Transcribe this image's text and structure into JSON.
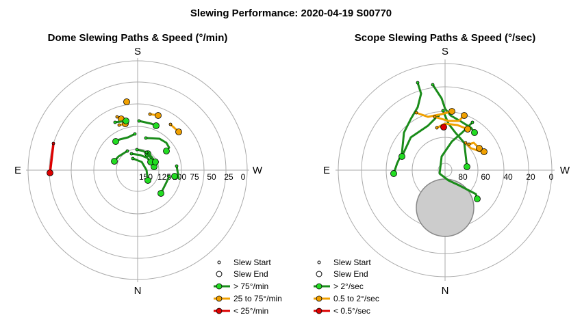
{
  "title": "Slewing Performance: 2020-04-19 S00770",
  "chart_data": [
    {
      "type": "polar-paths",
      "subtitle": "Dome Slewing Paths & Speed (°/min)",
      "cardinals": {
        "top": "S",
        "left": "E",
        "right": "W",
        "bottom": "N"
      },
      "radial_ticks": [
        "150",
        "125",
        "100",
        "75",
        "50",
        "25",
        "0"
      ],
      "legend": [
        {
          "label": "Slew Start",
          "kind": "start"
        },
        {
          "label": "Slew End",
          "kind": "end"
        },
        {
          "label": "> 75°/min",
          "kind": "line",
          "color": "#1a8c1a",
          "marker": "#22dd22"
        },
        {
          "label": "25 to 75°/min",
          "kind": "line",
          "color": "#f0a000",
          "marker": "#f0a000"
        },
        {
          "label": "< 25°/min",
          "kind": "line",
          "color": "#dd0000",
          "marker": "#dd0000"
        }
      ],
      "paths": [
        {
          "speed": "slow",
          "pts": [
            [
              -123,
              -39
            ],
            [
              -128,
              4
            ]
          ]
        },
        {
          "speed": "mid",
          "pts": [
            [
              -17,
              -101
            ],
            [
              -16,
              -100
            ]
          ]
        },
        {
          "speed": "mid",
          "pts": [
            [
              18,
              -82
            ],
            [
              30,
              -80
            ]
          ]
        },
        {
          "speed": "mid",
          "pts": [
            [
              -30,
              -78
            ],
            [
              -24,
              -75
            ]
          ]
        },
        {
          "speed": "mid",
          "pts": [
            [
              -27,
              -66
            ],
            [
              -18,
              -68
            ]
          ]
        },
        {
          "speed": "mid",
          "pts": [
            [
              48,
              -67
            ],
            [
              60,
              -56
            ]
          ]
        },
        {
          "speed": "fast",
          "pts": [
            [
              -33,
              -70
            ],
            [
              -17,
              -72
            ]
          ]
        },
        {
          "speed": "fast",
          "pts": [
            [
              2,
              -72
            ],
            [
              20,
              -68
            ],
            [
              27,
              -65
            ]
          ]
        },
        {
          "speed": "fast",
          "pts": [
            [
              -4,
              -53
            ],
            [
              -14,
              -48
            ],
            [
              -26,
              -45
            ],
            [
              -32,
              -42
            ]
          ]
        },
        {
          "speed": "fast",
          "pts": [
            [
              12,
              -47
            ],
            [
              32,
              -46
            ],
            [
              42,
              -40
            ],
            [
              46,
              -33
            ],
            [
              42,
              -28
            ]
          ]
        },
        {
          "speed": "fast",
          "pts": [
            [
              -15,
              -28
            ],
            [
              -28,
              -20
            ],
            [
              -34,
              -13
            ]
          ]
        },
        {
          "speed": "fast",
          "pts": [
            [
              -1,
              -30
            ],
            [
              8,
              -28
            ],
            [
              15,
              -24
            ]
          ]
        },
        {
          "speed": "fast",
          "pts": [
            [
              15,
              -24
            ],
            [
              22,
              -14
            ],
            [
              24,
              -5
            ]
          ]
        },
        {
          "speed": "fast",
          "pts": [
            [
              -9,
              -24
            ],
            [
              4,
              -22
            ],
            [
              14,
              -18
            ],
            [
              19,
              -12
            ]
          ]
        },
        {
          "speed": "fast",
          "pts": [
            [
              -7,
              -17
            ],
            [
              6,
              -12
            ],
            [
              13,
              0
            ],
            [
              15,
              15
            ]
          ]
        },
        {
          "speed": "fast",
          "pts": [
            [
              13,
              -26
            ],
            [
              20,
              -20
            ],
            [
              26,
              -12
            ]
          ]
        },
        {
          "speed": "fast",
          "pts": [
            [
              57,
              -6
            ],
            [
              60,
              12
            ],
            [
              54,
              9
            ]
          ]
        },
        {
          "speed": "fast",
          "pts": [
            [
              46,
              9
            ],
            [
              42,
              18
            ],
            [
              34,
              34
            ]
          ]
        }
      ]
    },
    {
      "type": "polar-paths",
      "subtitle": "Scope Slewing Paths & Speed (°/sec)",
      "cardinals": {
        "top": "S",
        "left": "E",
        "right": "W",
        "bottom": "N"
      },
      "radial_ticks": [
        "80",
        "60",
        "40",
        "20",
        "0"
      ],
      "shaded_region": {
        "center_x": 0,
        "center_y": 55,
        "radius": 42,
        "color": "#cccccc"
      },
      "legend": [
        {
          "label": "Slew Start",
          "kind": "start"
        },
        {
          "label": "Slew End",
          "kind": "end"
        },
        {
          "label": "> 2°/sec",
          "kind": "line",
          "color": "#1a8c1a",
          "marker": "#22dd22"
        },
        {
          "label": "0.5 to 2°/sec",
          "kind": "line",
          "color": "#f0a000",
          "marker": "#f0a000"
        },
        {
          "label": "< 0.5°/sec",
          "kind": "line",
          "color": "#dd0000",
          "marker": "#dd0000"
        }
      ],
      "paths": [
        {
          "speed": "fast",
          "pts": [
            [
              -40,
              -128
            ],
            [
              -35,
              -112
            ],
            [
              -40,
              -92
            ],
            [
              -50,
              -75
            ],
            [
              -60,
              -55
            ],
            [
              -63,
              -25
            ],
            [
              -70,
              -10
            ],
            [
              -75,
              5
            ]
          ]
        },
        {
          "speed": "fast",
          "pts": [
            [
              -18,
              -125
            ],
            [
              -5,
              -105
            ],
            [
              0,
              -90
            ],
            [
              8,
              -80
            ],
            [
              22,
              -72
            ],
            [
              38,
              -62
            ],
            [
              43,
              -55
            ]
          ]
        },
        {
          "speed": "fast",
          "pts": [
            [
              -10,
              -80
            ],
            [
              -25,
              -65
            ],
            [
              -50,
              -48
            ],
            [
              -63,
              -20
            ]
          ]
        },
        {
          "speed": "fast",
          "pts": [
            [
              -3,
              -87
            ],
            [
              5,
              -68
            ],
            [
              15,
              -55
            ],
            [
              28,
              -40
            ],
            [
              32,
              -5
            ]
          ]
        },
        {
          "speed": "fast",
          "pts": [
            [
              40,
              -70
            ],
            [
              25,
              -55
            ],
            [
              10,
              -42
            ],
            [
              -5,
              -20
            ],
            [
              -8,
              5
            ],
            [
              5,
              15
            ],
            [
              20,
              22
            ],
            [
              45,
              35
            ],
            [
              47,
              42
            ]
          ]
        },
        {
          "speed": "mid",
          "pts": [
            [
              -42,
              -84
            ],
            [
              -25,
              -78
            ],
            [
              -5,
              -82
            ],
            [
              10,
              -86
            ]
          ]
        },
        {
          "speed": "mid",
          "pts": [
            [
              -15,
              -78
            ],
            [
              5,
              -72
            ],
            [
              20,
              -72
            ],
            [
              28,
              -80
            ]
          ]
        },
        {
          "speed": "mid",
          "pts": [
            [
              -12,
              -62
            ],
            [
              0,
              -68
            ],
            [
              18,
              -66
            ],
            [
              33,
              -60
            ]
          ]
        },
        {
          "speed": "mid",
          "pts": [
            [
              30,
              -40
            ],
            [
              38,
              -32
            ],
            [
              50,
              -28
            ],
            [
              57,
              -27
            ]
          ]
        },
        {
          "speed": "mid",
          "pts": [
            [
              35,
              -38
            ],
            [
              42,
              -40
            ],
            [
              50,
              -32
            ]
          ]
        },
        {
          "speed": "slow",
          "pts": [
            [
              -4,
              -64
            ],
            [
              -2,
              -63
            ]
          ]
        }
      ]
    }
  ]
}
